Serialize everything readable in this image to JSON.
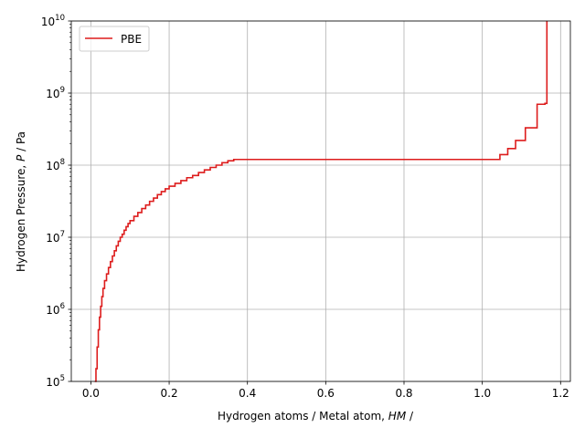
{
  "chart_data": {
    "type": "line",
    "xlabel": "Hydrogen atoms / Metal atom, HM /",
    "xlabel_plain": "Hydrogen atoms / Metal atom, ",
    "xlabel_italic": "HM",
    "xlabel_tail": " /",
    "ylabel_plain": "Hydrogen Pressure, ",
    "ylabel_italic": "P",
    "ylabel_tail": " / Pa",
    "xlim": [
      -0.05,
      1.225
    ],
    "ylim": [
      100000,
      10000000000
    ],
    "yscale": "log",
    "grid": true,
    "legend": "top-left",
    "x_ticks": [
      0.0,
      0.2,
      0.4,
      0.6,
      0.8,
      1.0,
      1.2
    ],
    "x_tick_labels": [
      "0.0",
      "0.2",
      "0.4",
      "0.6",
      "0.8",
      "1.0",
      "1.2"
    ],
    "y_ticks": [
      100000,
      1000000,
      10000000,
      100000000,
      1000000000,
      10000000000
    ],
    "y_tick_base": "10",
    "y_tick_exponents": [
      "5",
      "6",
      "7",
      "8",
      "9",
      "10"
    ],
    "series": [
      {
        "name": "PBE",
        "color": "#dd1c1c",
        "x": [
          0.01,
          0.013,
          0.016,
          0.019,
          0.022,
          0.025,
          0.028,
          0.031,
          0.035,
          0.04,
          0.045,
          0.05,
          0.055,
          0.06,
          0.065,
          0.07,
          0.075,
          0.08,
          0.085,
          0.09,
          0.095,
          0.1,
          0.11,
          0.12,
          0.13,
          0.14,
          0.15,
          0.16,
          0.17,
          0.18,
          0.19,
          0.2,
          0.215,
          0.23,
          0.245,
          0.26,
          0.275,
          0.29,
          0.305,
          0.32,
          0.335,
          0.35,
          0.365,
          0.375,
          1.045,
          1.045,
          1.065,
          1.085,
          1.11,
          1.14,
          1.16,
          1.165
        ],
        "y": [
          100000,
          150000,
          300000,
          520000,
          780000,
          1100000,
          1500000,
          1950000,
          2500000,
          3100000,
          3800000,
          4600000,
          5500000,
          6500000,
          7600000,
          8800000,
          10000000,
          11000000,
          12500000,
          14000000,
          15500000,
          17000000,
          19500000,
          22000000,
          25000000,
          28000000,
          31500000,
          35000000,
          39000000,
          43000000,
          47000000,
          51000000,
          56000000,
          61000000,
          67000000,
          72000000,
          79000000,
          86000000,
          93000000,
          100000000,
          108000000,
          115000000,
          120000000,
          120000000,
          120000000,
          140000000,
          170000000,
          220000000,
          330000000,
          700000000,
          720000000,
          10000000000
        ]
      }
    ]
  }
}
